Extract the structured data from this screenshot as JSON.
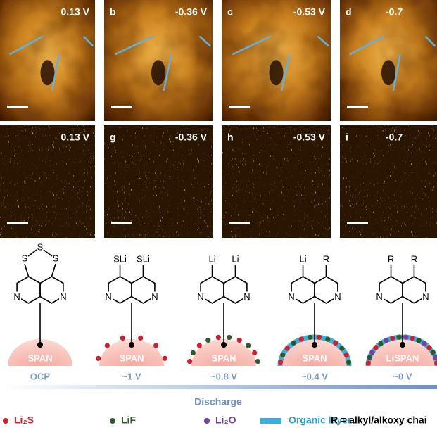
{
  "top_row": [
    {
      "voltage": "0.13 V"
    },
    {
      "letter": "b",
      "voltage": "-0.36 V"
    },
    {
      "letter": "c",
      "voltage": "-0.53 V"
    },
    {
      "letter": "d",
      "voltage": "-0.7"
    }
  ],
  "bottom_row": [
    {
      "voltage": "0.13 V"
    },
    {
      "letter": "g",
      "voltage": "-0.36 V"
    },
    {
      "letter": "h",
      "voltage": "-0.53 V"
    },
    {
      "letter": "i",
      "voltage": "-0.7"
    }
  ],
  "structures": [
    {
      "substituents": [
        "S",
        "S",
        "S"
      ],
      "nitrogens": [
        "N",
        "N"
      ],
      "core": "SPAN",
      "potential": "OCP"
    },
    {
      "substituents": [
        "SLi",
        "SLi"
      ],
      "nitrogens": [
        "N",
        "N"
      ],
      "core": "SPAN",
      "potential": "~1 V"
    },
    {
      "substituents": [
        "Li",
        "Li"
      ],
      "nitrogens": [
        "N",
        "N"
      ],
      "core": "SPAN",
      "potential": "~0.8 V"
    },
    {
      "substituents": [
        "Li",
        "R"
      ],
      "nitrogens": [
        "N",
        "N"
      ],
      "core": "SPAN",
      "potential": "~0.4 V"
    },
    {
      "substituents": [
        "R",
        "R"
      ],
      "nitrogens": [
        "N",
        "N"
      ],
      "core": "LiSPAN",
      "potential": "~0 V"
    }
  ],
  "arrow_label": "Discharge",
  "legend": {
    "li2s": "Li₂S",
    "lif": "LiF",
    "li2o": "Li₂O",
    "organic": "Organic layer",
    "r_def": "R = alkyl/alkoxy chai"
  }
}
